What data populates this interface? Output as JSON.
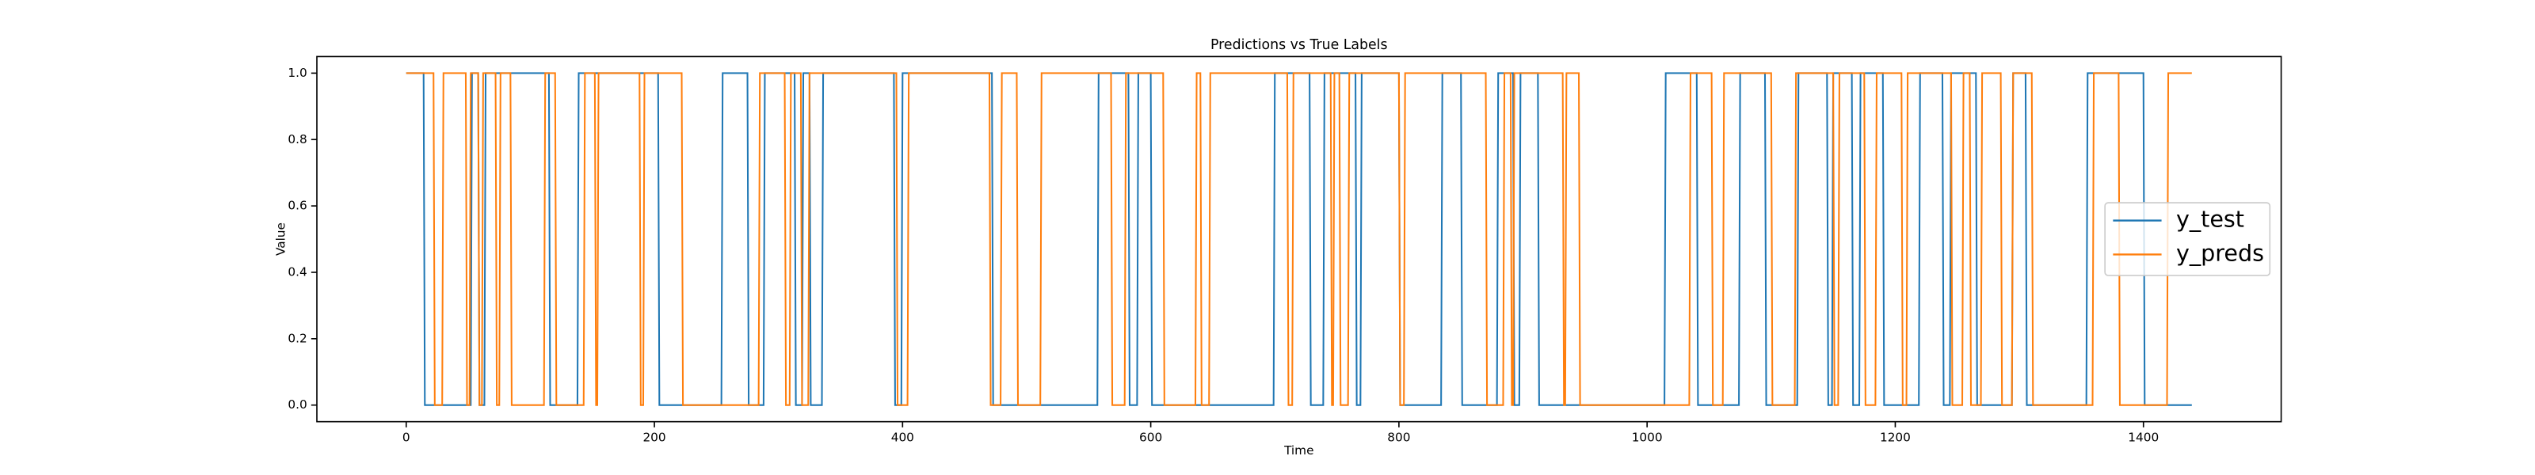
{
  "chart_data": {
    "type": "line",
    "title": "Predictions vs True Labels",
    "xlabel": "Time",
    "ylabel": "Value",
    "xlim": [
      -72,
      1511
    ],
    "ylim": [
      -0.05,
      1.05
    ],
    "xticks": [
      0,
      200,
      400,
      600,
      800,
      1000,
      1200,
      1400
    ],
    "yticks": [
      {
        "value": 0,
        "label": "0.0"
      },
      0.2,
      0.4,
      0.6,
      0.8,
      {
        "value": 1,
        "label": "1.0"
      }
    ],
    "grid": false,
    "legend": "right",
    "series": [
      {
        "name": "y_test",
        "color": "#1f77b4",
        "x": [
          0,
          14,
          15,
          52,
          53,
          58,
          59,
          63,
          64,
          115,
          116,
          138,
          139,
          203,
          204,
          254,
          255,
          275,
          276,
          288,
          289,
          313,
          314,
          319,
          320,
          325,
          326,
          335,
          336,
          393,
          394,
          399,
          400,
          472,
          473,
          557,
          558,
          582,
          583,
          589,
          590,
          600,
          601,
          699,
          700,
          728,
          729,
          739,
          740,
          765,
          766,
          769,
          770,
          800,
          801,
          834,
          835,
          850,
          851,
          879,
          880,
          892,
          893,
          897,
          898,
          912,
          913,
          1014,
          1015,
          1040,
          1041,
          1074,
          1075,
          1095,
          1096,
          1121,
          1122,
          1145,
          1146,
          1149,
          1150,
          1165,
          1166,
          1171,
          1172,
          1190,
          1191,
          1219,
          1220,
          1238,
          1239,
          1244,
          1245,
          1265,
          1266,
          1294,
          1295,
          1305,
          1306,
          1354,
          1355,
          1400,
          1401,
          1439
        ],
        "values": [
          1,
          1,
          0,
          0,
          1,
          1,
          0,
          0,
          1,
          1,
          0,
          0,
          1,
          1,
          0,
          0,
          1,
          1,
          0,
          0,
          1,
          1,
          0,
          0,
          1,
          1,
          0,
          0,
          1,
          1,
          0,
          0,
          1,
          1,
          0,
          0,
          1,
          1,
          0,
          0,
          1,
          1,
          0,
          0,
          1,
          1,
          0,
          0,
          1,
          1,
          0,
          0,
          1,
          1,
          0,
          0,
          1,
          1,
          0,
          0,
          1,
          1,
          0,
          0,
          1,
          1,
          0,
          0,
          1,
          1,
          0,
          0,
          1,
          1,
          0,
          0,
          1,
          1,
          0,
          0,
          1,
          1,
          0,
          0,
          1,
          1,
          0,
          0,
          1,
          1,
          0,
          0,
          1,
          1,
          0,
          0,
          1,
          1,
          0,
          0,
          1,
          1,
          0,
          0
        ]
      },
      {
        "name": "y_preds",
        "color": "#ff7f0e",
        "x": [
          0,
          22,
          23,
          29,
          30,
          48,
          49,
          51,
          52,
          58,
          59,
          61,
          62,
          72,
          73,
          75,
          76,
          84,
          85,
          111,
          112,
          120,
          121,
          143,
          144,
          152,
          153,
          154,
          155,
          188,
          189,
          191,
          192,
          222,
          223,
          284,
          285,
          305,
          306,
          309,
          310,
          318,
          319,
          324,
          325,
          395,
          396,
          404,
          405,
          470,
          471,
          479,
          480,
          492,
          493,
          511,
          512,
          568,
          569,
          579,
          580,
          610,
          611,
          636,
          637,
          640,
          641,
          647,
          648,
          710,
          711,
          714,
          715,
          745,
          746,
          747,
          748,
          752,
          753,
          759,
          760,
          800,
          801,
          804,
          805,
          870,
          871,
          884,
          885,
          890,
          891,
          892,
          893,
          932,
          933,
          934,
          935,
          945,
          946,
          1034,
          1035,
          1052,
          1053,
          1061,
          1062,
          1100,
          1101,
          1119,
          1120,
          1150,
          1151,
          1154,
          1155,
          1175,
          1176,
          1184,
          1185,
          1205,
          1206,
          1209,
          1210,
          1245,
          1246,
          1254,
          1255,
          1260,
          1261,
          1269,
          1270,
          1285,
          1286,
          1294,
          1295,
          1310,
          1311,
          1359,
          1360,
          1380,
          1381,
          1419,
          1420,
          1439
        ],
        "values": [
          1,
          1,
          0,
          0,
          1,
          1,
          0,
          0,
          1,
          1,
          0,
          0,
          1,
          1,
          0,
          0,
          1,
          1,
          0,
          0,
          1,
          1,
          0,
          0,
          1,
          1,
          0,
          0,
          1,
          1,
          0,
          0,
          1,
          1,
          0,
          0,
          1,
          1,
          0,
          0,
          1,
          1,
          0,
          0,
          1,
          1,
          0,
          0,
          1,
          1,
          0,
          0,
          1,
          1,
          0,
          0,
          1,
          1,
          0,
          0,
          1,
          1,
          0,
          0,
          1,
          1,
          0,
          0,
          1,
          1,
          0,
          0,
          1,
          1,
          0,
          0,
          1,
          1,
          0,
          0,
          1,
          1,
          0,
          0,
          1,
          1,
          0,
          0,
          1,
          1,
          0,
          0,
          1,
          1,
          0,
          0,
          1,
          1,
          0,
          0,
          1,
          1,
          0,
          0,
          1,
          1,
          0,
          0,
          1,
          1,
          0,
          0,
          1,
          1,
          0,
          0,
          1,
          1,
          0,
          0,
          1,
          1,
          0,
          0,
          1,
          1,
          0,
          0,
          1,
          1,
          0,
          0,
          1,
          1,
          0,
          0,
          1,
          1,
          0,
          0,
          1,
          1
        ]
      }
    ]
  }
}
